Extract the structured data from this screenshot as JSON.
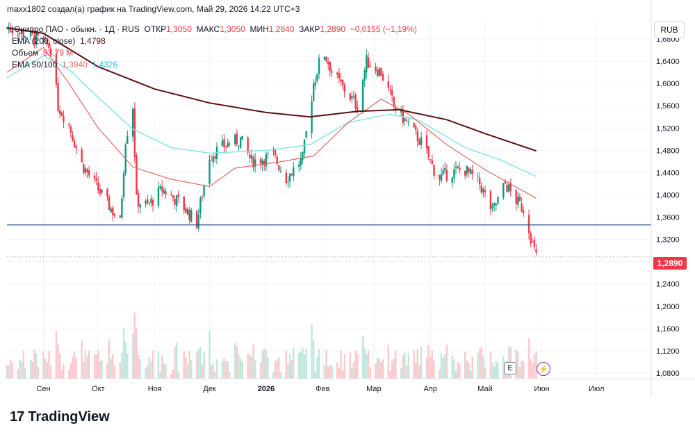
{
  "header": {
    "attribution": "maxx1802 создал(а) график на TradingView.com, Май 29, 2026 14:22 UTC+3"
  },
  "legend": {
    "symbol": "Юнипро ПАО - обыкн. · 1Д · RUS",
    "open_label": "ОТКР",
    "open": "1,3050",
    "high_label": "МАКС",
    "high": "1,3050",
    "low_label": "МИН",
    "low": "1,2840",
    "close_label": "ЗАКР",
    "close": "1,2890",
    "change": "−0,0155 (−1,19%)",
    "ema200_label": "EMA (200, close)",
    "ema200_value": "1,4798",
    "volume_label": "Объем",
    "volume_value": "53,79 M",
    "ema50100_label": "EMA 50/100",
    "ema50_value": "1,3940",
    "ema100_value": "1,4326"
  },
  "currency_button": "RUB",
  "last_price_tag": "1,2890",
  "event_e": "E",
  "event_bolt": "⚡",
  "footer": {
    "logo_mark": "17",
    "logo_text": "TradingView"
  },
  "colors": {
    "up": "#089981",
    "down": "#f23645",
    "ema200": "#5b0f0f",
    "ema50": "#e06a62",
    "ema100": "#7fe3ea",
    "support": "#2a4e96",
    "grid": "#f0f3fa",
    "volume_up": "#bfe6df",
    "volume_down": "#fcc9cd"
  },
  "chart_data": {
    "type": "candlestick",
    "y_ticks": [
      "1,6800",
      "1,6400",
      "1,6000",
      "1,5600",
      "1,5200",
      "1,4800",
      "1,4400",
      "1,4000",
      "1,3600",
      "1,3200",
      "1,2800",
      "1,2400",
      "1,2000",
      "1,1600",
      "1,1200",
      "1,0800"
    ],
    "y_tick_values": [
      1.68,
      1.64,
      1.6,
      1.56,
      1.52,
      1.48,
      1.44,
      1.4,
      1.36,
      1.32,
      1.28,
      1.24,
      1.2,
      1.16,
      1.12,
      1.08
    ],
    "ylim": [
      1.07,
      1.715
    ],
    "x_labels": [
      "Сен",
      "Окт",
      "Ноя",
      "Дек",
      "2026",
      "Фев",
      "Мар",
      "Апр",
      "Май",
      "Июн",
      "Июл"
    ],
    "x_label_dates": [
      "2025-09-01",
      "2025-10-01",
      "2025-11-01",
      "2025-12-01",
      "2026-01-01",
      "2026-02-01",
      "2026-03-01",
      "2026-04-01",
      "2026-05-01",
      "2026-06-01",
      "2026-07-01"
    ],
    "x_range": [
      "2025-08-12",
      "2026-07-31"
    ],
    "support_level": 1.346,
    "last_close": 1.289,
    "close_path": [
      [
        "2025-08-12",
        1.7
      ],
      [
        "2025-08-25",
        1.685
      ],
      [
        "2025-09-05",
        1.665
      ],
      [
        "2025-09-09",
        1.56
      ],
      [
        "2025-09-15",
        1.525
      ],
      [
        "2025-09-22",
        1.455
      ],
      [
        "2025-09-29",
        1.42
      ],
      [
        "2025-10-06",
        1.385
      ],
      [
        "2025-10-13",
        1.35
      ],
      [
        "2025-10-16",
        1.5
      ],
      [
        "2025-10-20",
        1.56
      ],
      [
        "2025-10-22",
        1.39
      ],
      [
        "2025-10-28",
        1.38
      ],
      [
        "2025-11-05",
        1.41
      ],
      [
        "2025-11-15",
        1.385
      ],
      [
        "2025-11-24",
        1.35
      ],
      [
        "2025-12-01",
        1.47
      ],
      [
        "2025-12-10",
        1.49
      ],
      [
        "2025-12-18",
        1.5
      ],
      [
        "2025-12-24",
        1.46
      ],
      [
        "2026-01-05",
        1.47
      ],
      [
        "2026-01-12",
        1.43
      ],
      [
        "2026-01-21",
        1.465
      ],
      [
        "2026-01-27",
        1.6
      ],
      [
        "2026-02-01",
        1.66
      ],
      [
        "2026-02-08",
        1.61
      ],
      [
        "2026-02-15",
        1.58
      ],
      [
        "2026-02-20",
        1.56
      ],
      [
        "2026-02-25",
        1.64
      ],
      [
        "2026-03-05",
        1.62
      ],
      [
        "2026-03-12",
        1.56
      ],
      [
        "2026-03-20",
        1.525
      ],
      [
        "2026-03-28",
        1.49
      ],
      [
        "2026-04-05",
        1.43
      ],
      [
        "2026-04-12",
        1.44
      ],
      [
        "2026-04-20",
        1.445
      ],
      [
        "2026-04-28",
        1.42
      ],
      [
        "2026-05-05",
        1.37
      ],
      [
        "2026-05-12",
        1.42
      ],
      [
        "2026-05-18",
        1.39
      ],
      [
        "2026-05-23",
        1.37
      ],
      [
        "2026-05-27",
        1.31
      ],
      [
        "2026-05-29",
        1.289
      ]
    ],
    "ema200_path": [
      [
        "2025-08-12",
        1.7
      ],
      [
        "2025-09-01",
        1.69
      ],
      [
        "2025-10-01",
        1.63
      ],
      [
        "2025-11-01",
        1.59
      ],
      [
        "2025-12-01",
        1.565
      ],
      [
        "2026-01-01",
        1.548
      ],
      [
        "2026-01-25",
        1.54
      ],
      [
        "2026-02-20",
        1.55
      ],
      [
        "2026-03-15",
        1.553
      ],
      [
        "2026-04-10",
        1.535
      ],
      [
        "2026-05-01",
        1.51
      ],
      [
        "2026-05-29",
        1.479
      ]
    ],
    "ema50_path": [
      [
        "2025-08-12",
        1.62
      ],
      [
        "2025-09-01",
        1.665
      ],
      [
        "2025-09-15",
        1.6
      ],
      [
        "2025-10-01",
        1.52
      ],
      [
        "2025-10-20",
        1.45
      ],
      [
        "2025-11-10",
        1.428
      ],
      [
        "2025-12-01",
        1.415
      ],
      [
        "2025-12-15",
        1.448
      ],
      [
        "2026-01-10",
        1.46
      ],
      [
        "2026-01-27",
        1.47
      ],
      [
        "2026-02-15",
        1.53
      ],
      [
        "2026-03-05",
        1.572
      ],
      [
        "2026-03-20",
        1.545
      ],
      [
        "2026-04-10",
        1.49
      ],
      [
        "2026-05-01",
        1.445
      ],
      [
        "2026-05-29",
        1.394
      ]
    ],
    "ema100_path": [
      [
        "2025-08-12",
        1.61
      ],
      [
        "2025-09-01",
        1.65
      ],
      [
        "2025-09-15",
        1.625
      ],
      [
        "2025-10-01",
        1.575
      ],
      [
        "2025-10-20",
        1.518
      ],
      [
        "2025-11-10",
        1.485
      ],
      [
        "2025-12-01",
        1.475
      ],
      [
        "2026-01-01",
        1.48
      ],
      [
        "2026-01-25",
        1.49
      ],
      [
        "2026-02-15",
        1.53
      ],
      [
        "2026-03-10",
        1.545
      ],
      [
        "2026-03-25",
        1.535
      ],
      [
        "2026-04-20",
        1.485
      ],
      [
        "2026-05-10",
        1.462
      ],
      [
        "2026-05-29",
        1.433
      ]
    ]
  }
}
